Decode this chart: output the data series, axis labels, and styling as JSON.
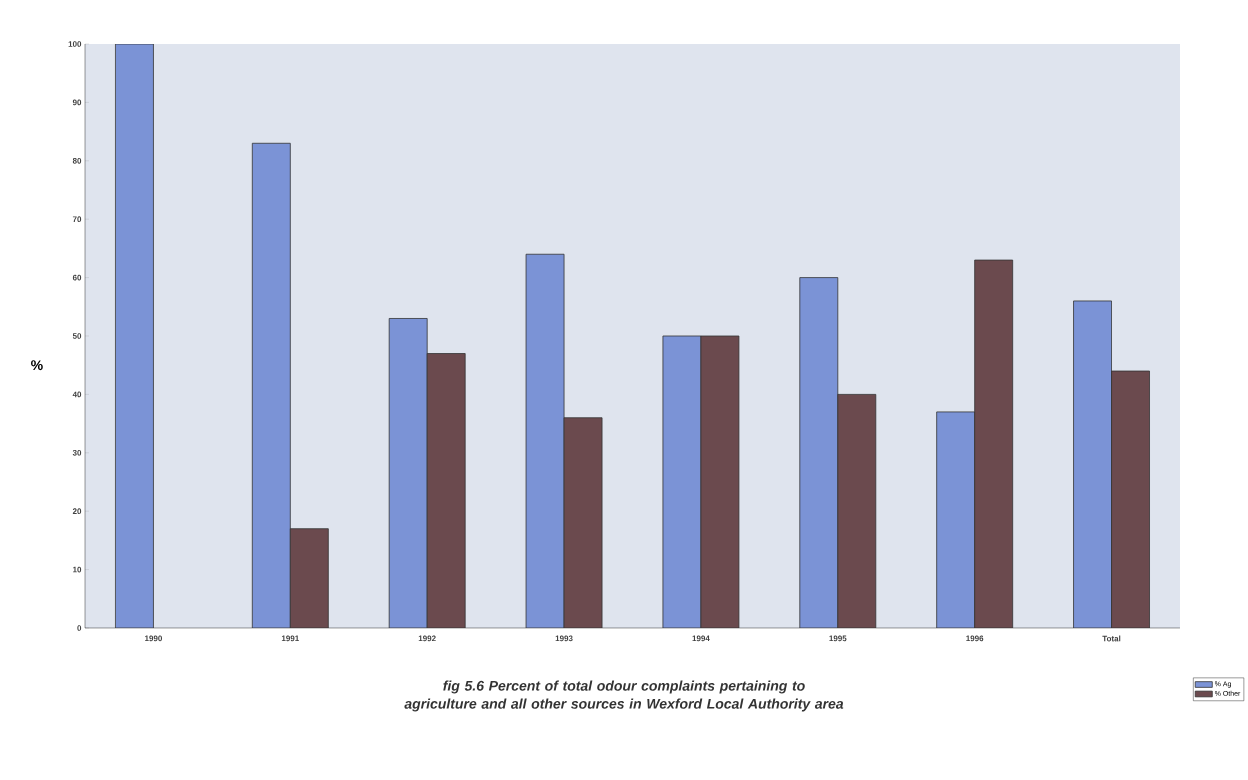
{
  "chart_data": {
    "type": "bar",
    "title": "fig 5.6  Percent of total odour complaints pertaining to agriculture and all other sources in Wexford Local Authority area",
    "ylabel": "%",
    "categories": [
      "1990",
      "1991",
      "1992",
      "1993",
      "1994",
      "1995",
      "1996",
      "Total"
    ],
    "series": [
      {
        "name": "% Ag",
        "color": "#7b93d6",
        "values": [
          100,
          83,
          53,
          64,
          50,
          60,
          37,
          56
        ]
      },
      {
        "name": "% Other",
        "color": "#6b4a4e",
        "values": [
          null,
          17,
          47,
          36,
          50,
          40,
          63,
          44
        ]
      }
    ],
    "ylim": [
      0,
      100
    ],
    "yticks": [
      0,
      10,
      20,
      30,
      40,
      50,
      60,
      70,
      80,
      90,
      100
    ],
    "grid": false,
    "legend": "bottom right"
  }
}
